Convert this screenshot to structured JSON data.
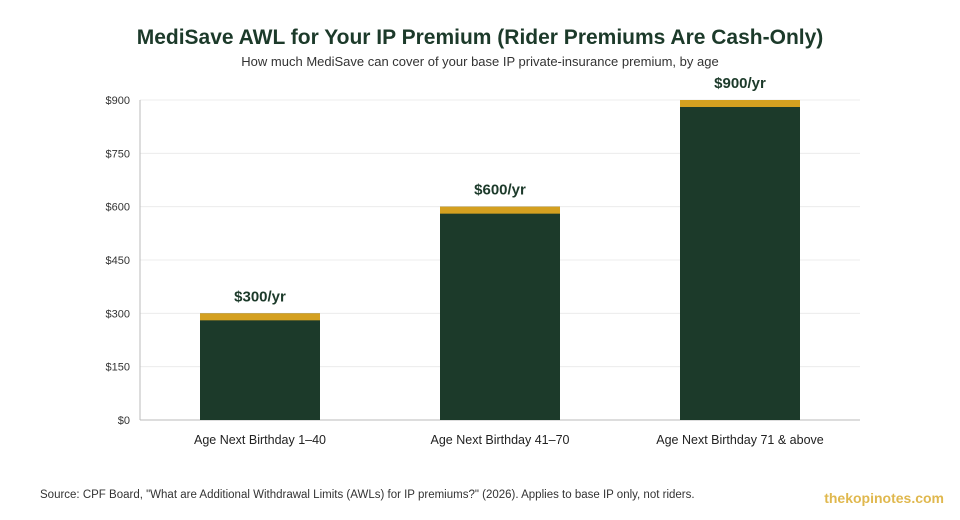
{
  "title": "MediSave AWL for Your IP Premium (Rider Premiums Are Cash-Only)",
  "subtitle": "How much MediSave can cover of your base IP private-insurance premium, by age",
  "source": "Source: CPF Board, \"What are Additional Withdrawal Limits (AWLs) for IP premiums?\" (2026). Applies to base IP only, not riders.",
  "brand": "thekopinotes.com",
  "colors": {
    "bar": "#1c3a2a",
    "bar_cap": "#d4a020",
    "label": "#1c3a2a",
    "grid": "#ececec",
    "axis": "#bbbbbb",
    "tick_text": "#333333"
  },
  "chart_data": {
    "type": "bar",
    "categories": [
      "Age Next Birthday 1–40",
      "Age Next Birthday 41–70",
      "Age Next Birthday 71 & above"
    ],
    "values": [
      300,
      600,
      900
    ],
    "data_labels": [
      "$300/yr",
      "$600/yr",
      "$900/yr"
    ],
    "ylim": [
      0,
      900
    ],
    "yticks": [
      0,
      150,
      300,
      450,
      600,
      750,
      900
    ],
    "ytick_labels": [
      "$0",
      "$150",
      "$300",
      "$450",
      "$600",
      "$750",
      "$900"
    ],
    "grid": true,
    "legend": "none"
  }
}
